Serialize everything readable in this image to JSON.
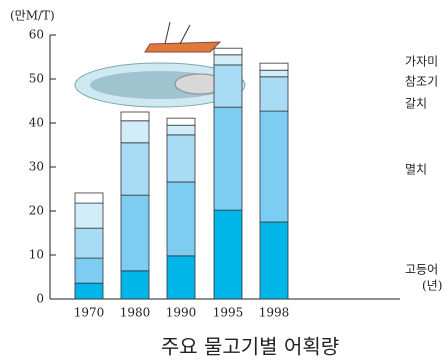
{
  "chart_data": {
    "type": "stacked-bar",
    "title": "주요 물고기별 어획량",
    "y_label": "(만M/T)",
    "x_label": "(년)",
    "categories": [
      "1970",
      "1980",
      "1990",
      "1995",
      "1998"
    ],
    "series": [
      {
        "name": "고등어",
        "color": "#00b5e8",
        "values": [
          3.6,
          6.4,
          9.8,
          20.2,
          17.5
        ]
      },
      {
        "name": "멸치",
        "color": "#7dcdf2",
        "values": [
          5.7,
          17.2,
          16.8,
          23.4,
          25.2
        ]
      },
      {
        "name": "갈치",
        "color": "#a8dcf5",
        "values": [
          6.8,
          11.9,
          10.7,
          9.6,
          7.8
        ]
      },
      {
        "name": "참조기",
        "color": "#d2edfa",
        "values": [
          5.7,
          5.0,
          2.2,
          2.3,
          1.5
        ]
      },
      {
        "name": "가자미",
        "color": "#ffffff",
        "values": [
          2.3,
          2.0,
          1.6,
          1.5,
          1.6
        ]
      }
    ],
    "ylim": [
      0,
      60
    ],
    "yticks": [
      0,
      10,
      20,
      30,
      40,
      50,
      60
    ]
  }
}
